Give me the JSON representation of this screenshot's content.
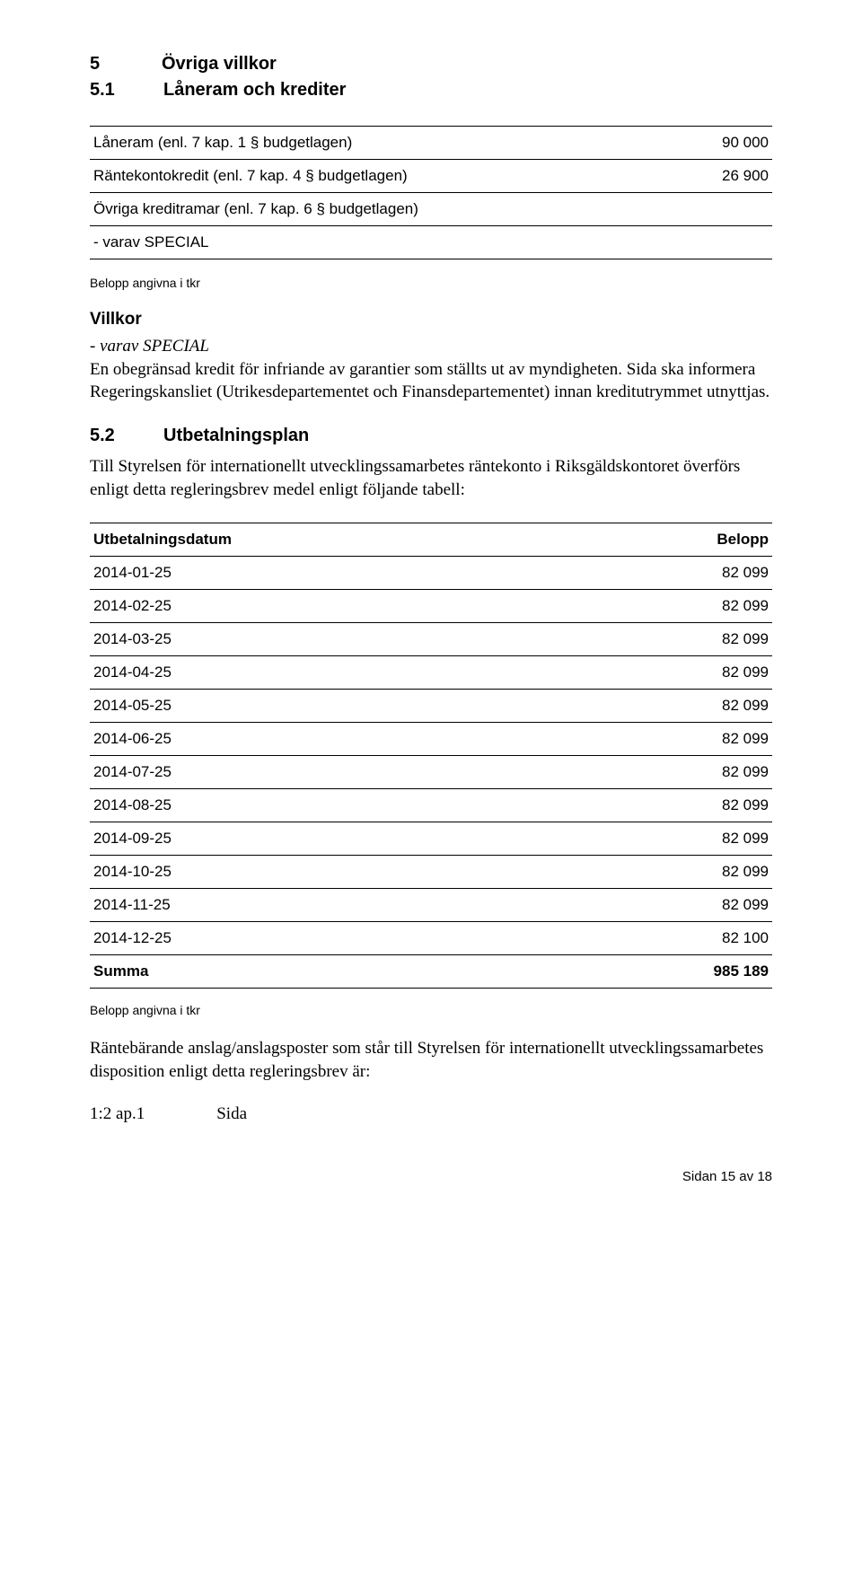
{
  "section5": {
    "num": "5",
    "title": "Övriga villkor"
  },
  "section51": {
    "num": "5.1",
    "title": "Låneram och krediter"
  },
  "loanTable": {
    "rows": [
      {
        "label": "Låneram (enl. 7 kap. 1 § budgetlagen)",
        "amount": "90 000"
      },
      {
        "label": "Räntekontokredit (enl. 7 kap. 4 § budgetlagen)",
        "amount": "26 900"
      },
      {
        "label": "Övriga kreditramar (enl. 7 kap. 6 § budgetlagen)",
        "amount": ""
      },
      {
        "label": "- varav SPECIAL",
        "amount": ""
      }
    ]
  },
  "note": "Belopp angivna i tkr",
  "villkorHead": "Villkor",
  "villkorItalic": "- varav SPECIAL",
  "villkorBody": "En obegränsad kredit för infriande av garantier som ställts ut av myndigheten. Sida ska informera Regeringskansliet (Utrikesdepartementet och Finansdepartementet) innan kreditutrymmet utnyttjas.",
  "section52": {
    "num": "5.2",
    "title": "Utbetalningsplan"
  },
  "payIntro": "Till Styrelsen för internationellt utvecklingssamarbetes räntekonto i Riksgäldskontoret överförs enligt detta regleringsbrev medel enligt följande tabell:",
  "payTable": {
    "colDate": "Utbetalningsdatum",
    "colAmt": "Belopp",
    "rows": [
      {
        "date": "2014-01-25",
        "amount": "82 099"
      },
      {
        "date": "2014-02-25",
        "amount": "82 099"
      },
      {
        "date": "2014-03-25",
        "amount": "82 099"
      },
      {
        "date": "2014-04-25",
        "amount": "82 099"
      },
      {
        "date": "2014-05-25",
        "amount": "82 099"
      },
      {
        "date": "2014-06-25",
        "amount": "82 099"
      },
      {
        "date": "2014-07-25",
        "amount": "82 099"
      },
      {
        "date": "2014-08-25",
        "amount": "82 099"
      },
      {
        "date": "2014-09-25",
        "amount": "82 099"
      },
      {
        "date": "2014-10-25",
        "amount": "82 099"
      },
      {
        "date": "2014-11-25",
        "amount": "82 099"
      },
      {
        "date": "2014-12-25",
        "amount": "82 100"
      }
    ],
    "sumLabel": "Summa",
    "sumAmount": "985 189"
  },
  "afterPay": "Räntebärande anslag/anslagsposter som står till Styrelsen för internationellt utvecklingssamarbetes disposition enligt detta regleringsbrev är:",
  "apKey": "1:2 ap.1",
  "apVal": "Sida",
  "footer": "Sidan 15 av 18"
}
